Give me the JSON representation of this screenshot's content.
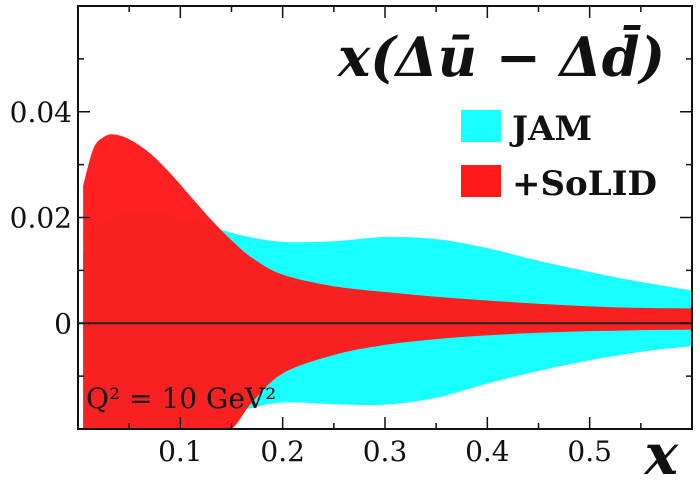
{
  "chart_data": {
    "type": "area",
    "title": "x(Δū − Δd̄)",
    "xlabel": "x",
    "ylabel": "",
    "xlim": [
      0.0,
      0.6
    ],
    "ylim": [
      -0.02,
      0.06
    ],
    "x_ticks": [
      0.1,
      0.2,
      0.3,
      0.4,
      0.5
    ],
    "x_tick_labels": [
      "0.1",
      "0.2",
      "0.3",
      "0.4",
      "0.5"
    ],
    "y_ticks": [
      0,
      0.02,
      0.04
    ],
    "y_tick_labels": [
      "0",
      "0.02",
      "0.04"
    ],
    "grid": false,
    "legend_position": "top-right",
    "annotation": "Q² = 10 GeV²",
    "zero_line": true,
    "series": [
      {
        "name": "JAM",
        "color": "#18ffff",
        "x": [
          0.005,
          0.02,
          0.04,
          0.06,
          0.08,
          0.1,
          0.13,
          0.16,
          0.2,
          0.25,
          0.3,
          0.35,
          0.4,
          0.45,
          0.5,
          0.55,
          0.6
        ],
        "upper": [
          0.013,
          0.0185,
          0.0205,
          0.0211,
          0.0208,
          0.0199,
          0.0183,
          0.0166,
          0.0154,
          0.0155,
          0.0163,
          0.0159,
          0.0142,
          0.0118,
          0.0097,
          0.0078,
          0.0062
        ],
        "lower": [
          -0.02,
          -0.02,
          -0.02,
          -0.02,
          -0.02,
          -0.02,
          -0.0185,
          -0.0165,
          -0.015,
          -0.0153,
          -0.0154,
          -0.0141,
          -0.0114,
          -0.009,
          -0.007,
          -0.0054,
          -0.0043
        ]
      },
      {
        "name": "+SoLID",
        "color": "#ff1a1a",
        "x": [
          0.005,
          0.015,
          0.025,
          0.035,
          0.05,
          0.07,
          0.09,
          0.11,
          0.13,
          0.15,
          0.17,
          0.2,
          0.25,
          0.3,
          0.35,
          0.4,
          0.45,
          0.5,
          0.55,
          0.6
        ],
        "upper": [
          0.026,
          0.033,
          0.0352,
          0.0357,
          0.0348,
          0.0322,
          0.0284,
          0.024,
          0.0196,
          0.0157,
          0.0124,
          0.0092,
          0.007,
          0.0059,
          0.005,
          0.0043,
          0.0037,
          0.0032,
          0.0029,
          0.0028
        ],
        "lower": [
          -0.02,
          -0.02,
          -0.02,
          -0.02,
          -0.02,
          -0.02,
          -0.02,
          -0.02,
          -0.02,
          -0.02,
          -0.015,
          -0.0095,
          -0.006,
          -0.0041,
          -0.003,
          -0.0023,
          -0.0018,
          -0.0015,
          -0.0013,
          -0.0012
        ]
      }
    ]
  }
}
